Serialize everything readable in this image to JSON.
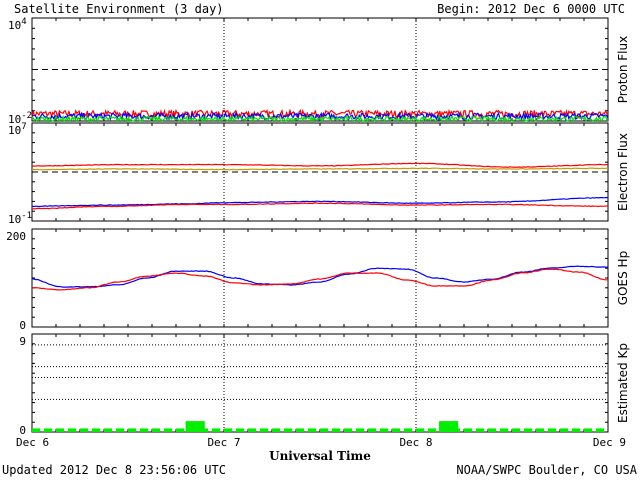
{
  "chart_data": {
    "type": "line",
    "title": "Satellite Environment (3 day)",
    "begin": "Begin:  2012 Dec 6 0000 UTC",
    "xlabel": "Universal Time",
    "x_ticks": [
      "Dec 6",
      "Dec 7",
      "Dec 8",
      "Dec 9"
    ],
    "xlim": [
      0,
      3
    ],
    "footer_left": "Updated 2012 Dec  8 23:56:06 UTC",
    "footer_right": "NOAA/SWPC Boulder, CO USA",
    "panels": [
      {
        "ylabel": "Proton Flux",
        "y_ticks": [
          {
            "base": "10",
            "exp": "4"
          },
          {
            "base": "10",
            "exp": "-2"
          }
        ],
        "yscale": "log",
        "ylim": [
          -2,
          4
        ],
        "threshold": 1,
        "series": [
          {
            "color": "#ff0000",
            "level": -1.58,
            "noise": 0.2
          },
          {
            "color": "#0000ff",
            "level": -1.72,
            "noise": 0.18
          },
          {
            "color": "#00e000",
            "level": -1.88,
            "noise": 0.14
          }
        ]
      },
      {
        "ylabel": "Electron Flux",
        "y_ticks": [
          {
            "base": "10",
            "exp": "7"
          },
          {
            "base": "10",
            "exp": "-1"
          }
        ],
        "yscale": "log",
        "ylim": [
          -1,
          7
        ],
        "threshold": 3,
        "series": [
          {
            "color": "#ff0000",
            "x": [
              0,
              0.5,
              1,
              1.5,
              2,
              2.5,
              3
            ],
            "y": [
              3.5,
              3.6,
              3.6,
              3.5,
              3.7,
              3.4,
              3.6
            ]
          },
          {
            "color": "#cc9900",
            "x": [
              0,
              0.5,
              1,
              1.5,
              2,
              2.5,
              3
            ],
            "y": [
              3.2,
              3.25,
              3.2,
              3.25,
              3.3,
              3.25,
              3.3
            ]
          },
          {
            "color": "#0000ff",
            "x": [
              0,
              0.4,
              0.8,
              1,
              1.5,
              2,
              2.4,
              3
            ],
            "y": [
              0.2,
              0.3,
              0.4,
              0.5,
              0.6,
              0.45,
              0.55,
              0.9
            ]
          },
          {
            "color": "#ff0000",
            "x": [
              0,
              0.4,
              0.8,
              1,
              1.5,
              2,
              2.4,
              3
            ],
            "y": [
              0.0,
              0.2,
              0.35,
              0.35,
              0.45,
              0.3,
              0.35,
              0.2
            ]
          }
        ]
      },
      {
        "ylabel": "GOES Hp",
        "y_ticks": [
          {
            "text": "200"
          },
          {
            "text": "0"
          }
        ],
        "yscale": "linear",
        "ylim": [
          0,
          200
        ],
        "series": [
          {
            "color": "#0000ff",
            "x": [
              0,
              0.15,
              0.3,
              0.45,
              0.6,
              0.75,
              0.9,
              1.05,
              1.2,
              1.35,
              1.5,
              1.65,
              1.8,
              1.95,
              2.1,
              2.25,
              2.4,
              2.55,
              2.7,
              2.85,
              3.0
            ],
            "y": [
              98,
              82,
              82,
              86,
              100,
              114,
              114,
              100,
              88,
              86,
              92,
              108,
              120,
              118,
              100,
              92,
              98,
              112,
              120,
              124,
              122
            ]
          },
          {
            "color": "#ff0000",
            "x": [
              0,
              0.15,
              0.3,
              0.45,
              0.6,
              0.75,
              0.9,
              1.05,
              1.2,
              1.35,
              1.5,
              1.65,
              1.8,
              1.95,
              2.1,
              2.25,
              2.4,
              2.55,
              2.7,
              2.85,
              3.0
            ],
            "y": [
              80,
              76,
              80,
              92,
              104,
              110,
              104,
              90,
              86,
              88,
              98,
              110,
              110,
              96,
              84,
              84,
              96,
              110,
              118,
              112,
              96
            ]
          }
        ]
      },
      {
        "ylabel": "Estimated Kp",
        "y_ticks": [
          {
            "text": "9"
          },
          {
            "text": "0"
          }
        ],
        "yscale": "linear",
        "ylim": [
          0,
          9
        ],
        "gridlines": [
          3,
          5,
          6,
          8,
          9
        ],
        "bars": {
          "color": "#00ee00",
          "width": 0.125,
          "values": [
            0.33,
            0.33,
            0.33,
            0.33,
            0.33,
            0.33,
            0.33,
            0.33,
            0.33,
            0.33,
            0.33,
            0.33,
            0.33,
            0.33,
            0.33,
            0.33,
            0.33,
            0.33,
            0.33,
            0.33,
            0.33,
            0.33,
            0.33,
            0.33,
            0.33,
            0.33,
            0.33,
            0.33,
            0.33,
            0.33,
            0.33,
            0.33,
            0.33,
            0.33,
            0.33,
            0.33,
            0.33,
            0.33,
            0.33,
            0.33,
            0.33,
            0.33,
            0.33,
            0.33,
            0.33,
            0.33,
            0.33,
            0.33
          ],
          "highlight": [
            {
              "x0": 0.8,
              "x1": 0.9,
              "value": 1
            },
            {
              "x0": 2.12,
              "x1": 2.22,
              "value": 1
            }
          ]
        }
      }
    ]
  }
}
